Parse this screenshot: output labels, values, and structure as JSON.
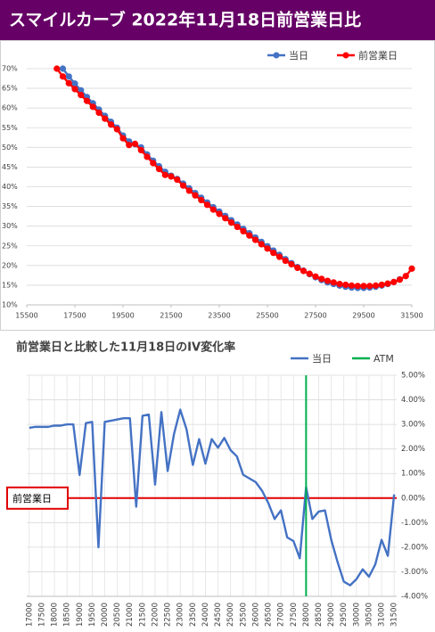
{
  "header": {
    "title": "スマイルカーブ  2022年11月18日前営業日比"
  },
  "chart_data": [
    {
      "type": "line",
      "x": [
        16750,
        17000,
        17250,
        17500,
        17750,
        18000,
        18250,
        18500,
        18750,
        19000,
        19250,
        19500,
        19750,
        20000,
        20250,
        20500,
        20750,
        21000,
        21250,
        21500,
        21750,
        22000,
        22250,
        22500,
        22750,
        23000,
        23250,
        23500,
        23750,
        24000,
        24250,
        24500,
        24750,
        25000,
        25250,
        25500,
        25750,
        26000,
        26250,
        26500,
        26750,
        27000,
        27250,
        27500,
        27750,
        28000,
        28250,
        28500,
        28750,
        29000,
        29250,
        29500,
        29750,
        30000,
        30250,
        30500,
        30750,
        31000,
        31250,
        31500
      ],
      "series": [
        {
          "name": "当日",
          "color": "#4472c4",
          "values": [
            null,
            70.0,
            68.0,
            66.2,
            64.5,
            62.8,
            61.2,
            59.6,
            58.0,
            56.5,
            55.0,
            53.0,
            51.5,
            50.8,
            50.0,
            48.2,
            46.6,
            45.2,
            43.8,
            42.8,
            42.0,
            40.8,
            39.6,
            38.4,
            37.2,
            36.0,
            34.8,
            33.7,
            32.6,
            31.5,
            30.4,
            29.3,
            28.2,
            27.1,
            26.0,
            24.9,
            23.8,
            22.7,
            21.6,
            20.6,
            19.6,
            18.7,
            17.8,
            17.0,
            16.3,
            15.7,
            15.3,
            14.9,
            14.6,
            14.4,
            14.3,
            14.3,
            14.4,
            14.6,
            14.9,
            15.3,
            15.8,
            16.5,
            null,
            null
          ]
        },
        {
          "name": "前営業日",
          "color": "#ff0000",
          "values": [
            70.0,
            68.0,
            66.3,
            64.8,
            63.3,
            61.8,
            60.3,
            58.8,
            57.3,
            55.8,
            54.6,
            52.3,
            50.6,
            50.9,
            49.3,
            47.6,
            46.0,
            44.5,
            43.0,
            42.6,
            41.8,
            40.3,
            39.0,
            37.8,
            36.6,
            35.4,
            34.2,
            33.1,
            32.0,
            30.9,
            29.8,
            28.7,
            27.6,
            26.5,
            25.4,
            24.3,
            23.2,
            22.2,
            21.2,
            20.3,
            19.4,
            18.6,
            17.9,
            17.2,
            16.6,
            16.1,
            15.7,
            15.3,
            15.1,
            14.9,
            14.8,
            14.8,
            14.8,
            14.9,
            15.1,
            15.4,
            15.8,
            16.4,
            17.3,
            19.2
          ]
        }
      ],
      "xlim": [
        15500,
        31500
      ],
      "xticks": [
        15500,
        17500,
        19500,
        21500,
        23500,
        25500,
        27500,
        29500,
        31500
      ],
      "ylim": [
        10,
        70
      ],
      "yticks": [
        {
          "value": 10,
          "label": "10%"
        },
        {
          "value": 15,
          "label": "15%"
        },
        {
          "value": 20,
          "label": "20%"
        },
        {
          "value": 25,
          "label": "25%"
        },
        {
          "value": 30,
          "label": "30%"
        },
        {
          "value": 35,
          "label": "35%"
        },
        {
          "value": 40,
          "label": "40%"
        },
        {
          "value": 45,
          "label": "45%"
        },
        {
          "value": 50,
          "label": "50%"
        },
        {
          "value": 55,
          "label": "55%"
        },
        {
          "value": 60,
          "label": "60%"
        },
        {
          "value": 65,
          "label": "65%"
        },
        {
          "value": 70,
          "label": "70%"
        }
      ],
      "grid": true,
      "markers": true,
      "legend": "top-right"
    },
    {
      "type": "line",
      "title": "前営業日と比較した11月18日のIV変化率",
      "x": [
        17000,
        17250,
        17500,
        17750,
        18000,
        18250,
        18500,
        18750,
        19000,
        19250,
        19500,
        19750,
        20000,
        20250,
        20500,
        20750,
        21000,
        21250,
        21500,
        21750,
        22000,
        22250,
        22500,
        22750,
        23000,
        23250,
        23500,
        23750,
        24000,
        24250,
        24500,
        24750,
        25000,
        25250,
        25500,
        25750,
        26000,
        26250,
        26500,
        26750,
        27000,
        27250,
        27500,
        27750,
        28000,
        28250,
        28500,
        28750,
        29000,
        29250,
        29500,
        29750,
        30000,
        30250,
        30500,
        30750,
        31000,
        31250,
        31500
      ],
      "series": [
        {
          "name": "当日",
          "color": "#4472c4",
          "values": [
            2.86,
            2.9,
            2.9,
            2.9,
            2.95,
            2.95,
            3.0,
            3.0,
            0.94,
            3.05,
            3.1,
            -2.0,
            3.1,
            3.15,
            3.2,
            3.25,
            3.25,
            -0.35,
            3.35,
            3.4,
            0.55,
            3.5,
            1.1,
            2.6,
            3.6,
            2.8,
            1.35,
            2.4,
            1.4,
            2.4,
            2.05,
            2.45,
            1.95,
            1.7,
            0.95,
            0.8,
            0.65,
            0.3,
            -0.2,
            -0.85,
            -0.5,
            -1.6,
            -1.75,
            -2.45,
            0.45,
            -0.85,
            -0.55,
            -0.5,
            -1.7,
            -2.6,
            -3.4,
            -3.55,
            -3.3,
            -2.9,
            -3.2,
            -2.7,
            -1.7,
            -2.35,
            0.15
          ]
        },
        {
          "name": "ATM",
          "color": "#00b050",
          "type": "vline",
          "x": 28000
        }
      ],
      "reference_line": {
        "label": "前営業日",
        "value": 0,
        "color": "#e00000"
      },
      "xlim": [
        16900,
        31600
      ],
      "xticks": [
        17000,
        17500,
        18000,
        18500,
        19000,
        19500,
        20000,
        20500,
        21000,
        21500,
        22000,
        22500,
        23000,
        23500,
        24000,
        24500,
        25000,
        25500,
        26000,
        26500,
        27000,
        27500,
        28000,
        28500,
        29000,
        29500,
        30000,
        30500,
        31000,
        31500
      ],
      "ylim": [
        -4,
        5
      ],
      "yticks": [
        {
          "value": -4,
          "label": "-4.00%"
        },
        {
          "value": -3,
          "label": "-3.00%"
        },
        {
          "value": -2,
          "label": "-2.00%"
        },
        {
          "value": -1,
          "label": "-1.00%"
        },
        {
          "value": 0,
          "label": "0.00%"
        },
        {
          "value": 1,
          "label": "1.00%"
        },
        {
          "value": 2,
          "label": "2.00%"
        },
        {
          "value": 3,
          "label": "3.00%"
        },
        {
          "value": 4,
          "label": "4.00%"
        },
        {
          "value": 5,
          "label": "5.00%"
        }
      ],
      "yaxis_position": "right",
      "grid": true,
      "markers": false,
      "legend": "top-right"
    }
  ]
}
